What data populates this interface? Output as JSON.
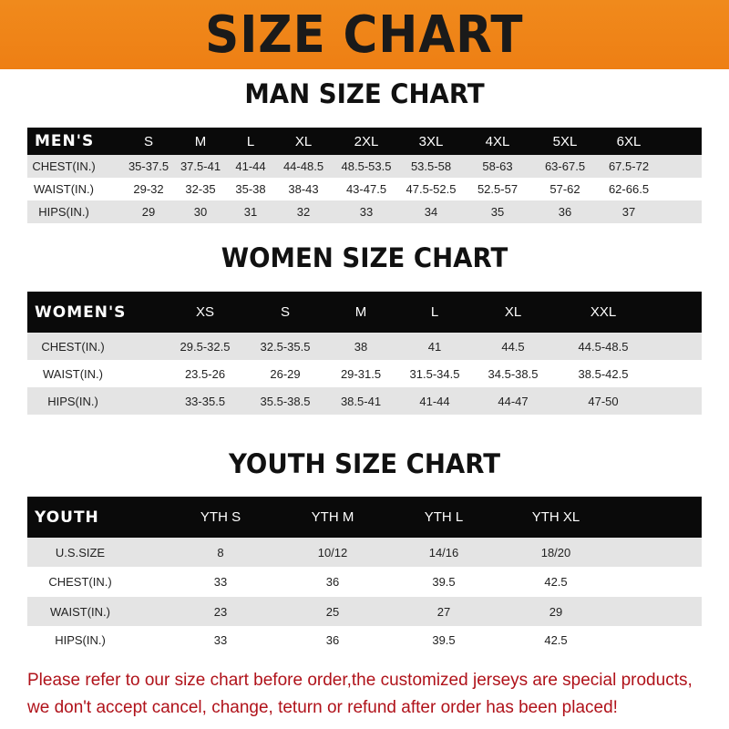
{
  "banner_title": "SIZE CHART",
  "men": {
    "title": "MAN SIZE CHART",
    "header": "MEN'S",
    "sizes": [
      "S",
      "M",
      "L",
      "XL",
      "2XL",
      "3XL",
      "4XL",
      "5XL",
      "6XL"
    ],
    "rows": [
      {
        "label": "CHEST(IN.)",
        "values": [
          "35-37.5",
          "37.5-41",
          "41-44",
          "44-48.5",
          "48.5-53.5",
          "53.5-58",
          "58-63",
          "63-67.5",
          "67.5-72"
        ]
      },
      {
        "label": "WAIST(IN.)",
        "values": [
          "29-32",
          "32-35",
          "35-38",
          "38-43",
          "43-47.5",
          "47.5-52.5",
          "52.5-57",
          "57-62",
          "62-66.5"
        ]
      },
      {
        "label": "HIPS(IN.)",
        "values": [
          "29",
          "30",
          "31",
          "32",
          "33",
          "34",
          "35",
          "36",
          "37"
        ]
      }
    ]
  },
  "women": {
    "title": "WOMEN SIZE CHART",
    "header": "WOMEN'S",
    "sizes": [
      "XS",
      "S",
      "M",
      "L",
      "XL",
      "XXL"
    ],
    "rows": [
      {
        "label": "CHEST(IN.)",
        "values": [
          "29.5-32.5",
          "32.5-35.5",
          "38",
          "41",
          "44.5",
          "44.5-48.5"
        ]
      },
      {
        "label": "WAIST(IN.)",
        "values": [
          "23.5-26",
          "26-29",
          "29-31.5",
          "31.5-34.5",
          "34.5-38.5",
          "38.5-42.5"
        ]
      },
      {
        "label": "HIPS(IN.)",
        "values": [
          "33-35.5",
          "35.5-38.5",
          "38.5-41",
          "41-44",
          "44-47",
          "47-50"
        ]
      }
    ]
  },
  "youth": {
    "title": "YOUTH SIZE CHART",
    "header": "YOUTH",
    "sizes": [
      "YTH S",
      "YTH M",
      "YTH L",
      "YTH XL"
    ],
    "rows": [
      {
        "label": "U.S.SIZE",
        "values": [
          "8",
          "10/12",
          "14/16",
          "18/20"
        ]
      },
      {
        "label": "CHEST(IN.)",
        "values": [
          "33",
          "36",
          "39.5",
          "42.5"
        ]
      },
      {
        "label": "WAIST(IN.)",
        "values": [
          "23",
          "25",
          "27",
          "29"
        ]
      },
      {
        "label": "HIPS(IN.)",
        "values": [
          "33",
          "36",
          "39.5",
          "42.5"
        ]
      }
    ]
  },
  "notice": {
    "line1": "Please refer to our size chart before order,the customized jerseys are special products,",
    "line2": "we don't accept cancel, change, teturn or refund after order has been placed!"
  },
  "colors": {
    "banner": "#ef8419",
    "header_row": "#0a0a0a",
    "alt_row": "#e4e4e4",
    "notice": "#b0121a"
  }
}
